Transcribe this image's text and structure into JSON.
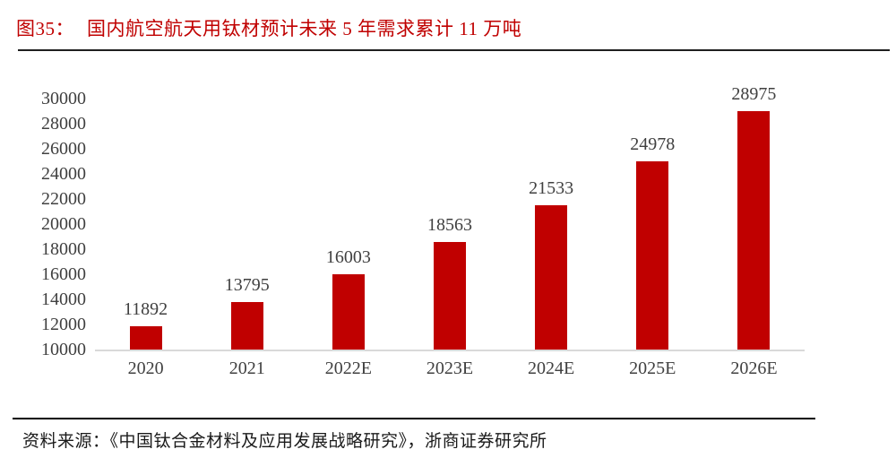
{
  "header": {
    "figure_label": "图35：",
    "title": "国内航空航天用钛材预计未来 5 年需求累计 11 万吨"
  },
  "chart_data": {
    "type": "bar",
    "title": "国内航空航天用钛材预计未来 5 年需求累计 11 万吨",
    "categories": [
      "2020",
      "2021",
      "2022E",
      "2023E",
      "2024E",
      "2025E",
      "2026E"
    ],
    "values": [
      11892,
      13795,
      16003,
      18563,
      21533,
      24978,
      28975
    ],
    "xlabel": "",
    "ylabel": "",
    "ylim": [
      10000,
      30000
    ],
    "ytick_step": 2000,
    "yticks": [
      10000,
      12000,
      14000,
      16000,
      18000,
      20000,
      22000,
      24000,
      26000,
      28000,
      30000
    ],
    "grid": "off",
    "legend": "none",
    "data_labels": "above-bars",
    "bar_color": "#C00000",
    "tick_label_color": "#404040",
    "axis_line_color": "#D9D9D9"
  },
  "footer": {
    "source_label": "资料来源：",
    "source_text": "《中国钛合金材料及应用发展战略研究》，浙商证券研究所"
  },
  "colors": {
    "accent_red": "#C00000",
    "divider_dark": "#1F1F1F",
    "divider_black": "#000000"
  }
}
